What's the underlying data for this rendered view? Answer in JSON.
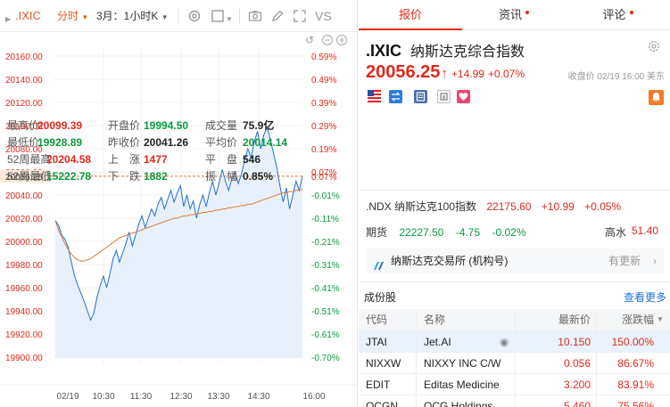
{
  "toolbar": {
    "symbol": ".IXIC",
    "period": "分时",
    "kline": "3月：1小时K",
    "vs_label": "VS"
  },
  "tabs": [
    {
      "label": "报价",
      "active": true,
      "dot": false
    },
    {
      "label": "资讯",
      "active": false,
      "dot": true
    },
    {
      "label": "评论",
      "active": false,
      "dot": true
    }
  ],
  "quote": {
    "symbol": ".IXIC",
    "name_cn": "纳斯达克综合指数",
    "price": "20056.25",
    "change": "+14.99",
    "change_pct": "+0.07%",
    "close_time": "收盘价 02/19 16:00 美东"
  },
  "stats": [
    [
      {
        "label": "最高价",
        "value": "20099.39",
        "color": "red"
      },
      {
        "label": "开盘价",
        "value": "19994.50",
        "color": "green"
      },
      {
        "label": "成交量",
        "value": "75.9亿",
        "color": "dark"
      }
    ],
    [
      {
        "label": "最低价",
        "value": "19928.89",
        "color": "green"
      },
      {
        "label": "昨收价",
        "value": "20041.26",
        "color": "dark"
      },
      {
        "label": "平均价",
        "value": "20014.14",
        "color": "green"
      }
    ],
    [
      {
        "label": "52周最高",
        "value": "20204.58",
        "color": "red"
      },
      {
        "label": "上　涨",
        "value": "1477",
        "color": "red"
      },
      {
        "label": "平　盘",
        "value": "546",
        "color": "dark"
      }
    ],
    [
      {
        "label": "52周最低",
        "value": "15222.78",
        "color": "green"
      },
      {
        "label": "下　跌",
        "value": "1882",
        "color": "green"
      },
      {
        "label": "振　幅",
        "value": "0.85%",
        "color": "dark"
      }
    ]
  ],
  "related": {
    "ndx_label": ".NDX 纳斯达克100指数",
    "ndx_price": "22175.60",
    "ndx_change": "+10.99",
    "ndx_pct": "+0.05%",
    "fut_label": "期货",
    "fut_price": "22227.50",
    "fut_change": "-4.75",
    "fut_pct": "-0.02%",
    "high_low_label": "高水",
    "high_low_value": "51.40"
  },
  "exchange": {
    "label": "纳斯达克交易所 (机构号)",
    "update": "有更新"
  },
  "components": {
    "title": "成份股",
    "more": "查看更多",
    "headers": [
      "代码",
      "名称",
      "最新价",
      "涨跌幅"
    ],
    "rows": [
      {
        "code": "JTAI",
        "name": "Jet.AI",
        "price": "10.150",
        "pct": "150.00%",
        "highlight": true
      },
      {
        "code": "NIXXW",
        "name": "NIXXY INC C/W",
        "price": "0.056",
        "pct": "86.67%",
        "highlight": false
      },
      {
        "code": "EDIT",
        "name": "Editas Medicine",
        "price": "3.200",
        "pct": "83.91%",
        "highlight": false
      },
      {
        "code": "OCGN",
        "name": "OCG Holdings",
        "price": "5.460",
        "pct": "75.56%",
        "highlight": false
      }
    ]
  },
  "colors": {
    "up": "#e3291b",
    "down": "#0a9a3c",
    "accent": "#e35a1d",
    "line": "#1f6fd1",
    "avg": "#e07a30",
    "fill": "#e8f1fb",
    "link": "#1f6fd1"
  },
  "chart_data": {
    "type": "line",
    "y_ticks": [
      "20160.00",
      "20140.00",
      "20120.00",
      "20100.00",
      "20080.00",
      "20060.00",
      "20040.00",
      "20020.00",
      "20000.00",
      "19980.00",
      "19960.00",
      "19940.00",
      "19920.00",
      "19900.00"
    ],
    "pct_ticks": [
      "0.59%",
      "0.49%",
      "0.39%",
      "0.29%",
      "0.19%",
      "0.07%",
      "-0.01%",
      "-0.11%",
      "-0.21%",
      "-0.31%",
      "-0.41%",
      "-0.51%",
      "-0.61%",
      "-0.70%"
    ],
    "x_ticks": [
      "02/19",
      "10:30",
      "11:30",
      "12:30",
      "13:30",
      "14:30",
      "16:00"
    ],
    "current_label": "20056.25",
    "current_pct_label": "0.07%",
    "current_value": 20056.25,
    "ylim": [
      19900,
      20160
    ],
    "price_series": [
      20018,
      20014,
      20005,
      20002,
      19995,
      19982,
      19970,
      19962,
      19955,
      19948,
      19940,
      19932,
      19938,
      19952,
      19962,
      19970,
      19960,
      19972,
      19985,
      19992,
      19982,
      19990,
      19998,
      20008,
      19996,
      20005,
      20015,
      20022,
      20012,
      20020,
      20028,
      20022,
      20032,
      20038,
      20028,
      20036,
      20044,
      20034,
      20042,
      20048,
      20030,
      20040,
      20028,
      20035,
      20020,
      20032,
      20040,
      20030,
      20042,
      20052,
      20040,
      20050,
      20062,
      20052,
      20044,
      20054,
      20060,
      20050,
      20058,
      20070,
      20080,
      20072,
      20086,
      20095,
      20080,
      20092,
      20099,
      20088,
      20076,
      20064,
      20048,
      20034,
      20046,
      20028,
      20040,
      20052,
      20044,
      20056.25
    ],
    "avg_series": [
      20018,
      20010,
      20004,
      19998,
      19993,
      19989,
      19986,
      19984,
      19983,
      19983,
      19984,
      19985,
      19987,
      19989,
      19991,
      19993,
      19995,
      19997,
      19999,
      20001,
      20003,
      20004,
      20005,
      20006,
      20007,
      20008,
      20009,
      20010,
      20011,
      20012,
      20013,
      20014,
      20015,
      20016,
      20017,
      20018,
      20019,
      20020,
      20020,
      20021,
      20022,
      20022,
      20023,
      20023,
      20024,
      20024,
      20025,
      20025,
      20026,
      20026,
      20027,
      20027,
      20028,
      20028,
      20029,
      20029,
      20030,
      20030,
      20031,
      20031,
      20032,
      20032,
      20033,
      20034,
      20035,
      20036,
      20037,
      20038,
      20039,
      20040,
      20041,
      20042,
      20042,
      20043,
      20043,
      20044,
      20044,
      20045
    ],
    "grid": true
  }
}
